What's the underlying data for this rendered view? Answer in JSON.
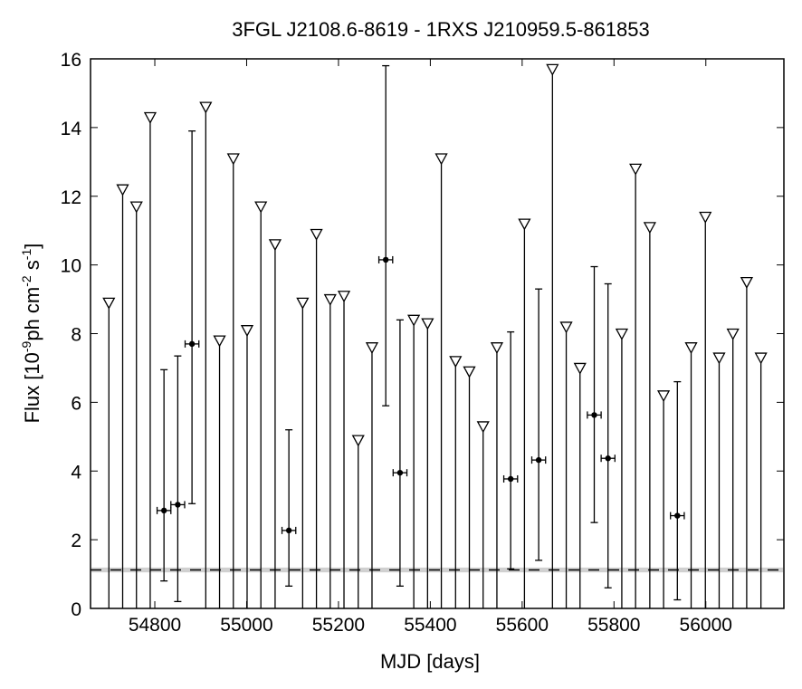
{
  "chart_data": {
    "type": "scatter",
    "title": "3FGL J2108.6-8619 - 1RXS J210959.5-861853",
    "xlabel": "MJD [days]",
    "ylabel": {
      "prefix": "Flux [10",
      "exp1": "-9",
      "mid": "ph cm",
      "exp2": "-2",
      "mid2": " s",
      "exp3": "-1",
      "suffix": "]"
    },
    "xlim": [
      54660,
      56170
    ],
    "ylim": [
      0,
      16
    ],
    "xticks": [
      54800,
      55000,
      55200,
      55400,
      55600,
      55800,
      56000
    ],
    "yticks": [
      0,
      2,
      4,
      6,
      8,
      10,
      12,
      14,
      16
    ],
    "grid": false,
    "upper_limits": [
      {
        "mjd": 54700,
        "flux": 8.9
      },
      {
        "mjd": 54730,
        "flux": 12.2
      },
      {
        "mjd": 54760,
        "flux": 11.7
      },
      {
        "mjd": 54790,
        "flux": 14.3
      },
      {
        "mjd": 54911,
        "flux": 14.6
      },
      {
        "mjd": 54941,
        "flux": 7.8
      },
      {
        "mjd": 54971,
        "flux": 13.1
      },
      {
        "mjd": 55001,
        "flux": 8.1
      },
      {
        "mjd": 55031,
        "flux": 11.7
      },
      {
        "mjd": 55062,
        "flux": 10.6
      },
      {
        "mjd": 55122,
        "flux": 8.9
      },
      {
        "mjd": 55152,
        "flux": 10.9
      },
      {
        "mjd": 55182,
        "flux": 9.0
      },
      {
        "mjd": 55212,
        "flux": 9.1
      },
      {
        "mjd": 55243,
        "flux": 4.9
      },
      {
        "mjd": 55273,
        "flux": 7.6
      },
      {
        "mjd": 55364,
        "flux": 8.4
      },
      {
        "mjd": 55394,
        "flux": 8.3
      },
      {
        "mjd": 55424,
        "flux": 13.1
      },
      {
        "mjd": 55455,
        "flux": 7.2
      },
      {
        "mjd": 55485,
        "flux": 6.9
      },
      {
        "mjd": 55515,
        "flux": 5.3
      },
      {
        "mjd": 55545,
        "flux": 7.6
      },
      {
        "mjd": 55605,
        "flux": 11.2
      },
      {
        "mjd": 55666,
        "flux": 15.7
      },
      {
        "mjd": 55696,
        "flux": 8.2
      },
      {
        "mjd": 55726,
        "flux": 7.0
      },
      {
        "mjd": 55817,
        "flux": 8.0
      },
      {
        "mjd": 55847,
        "flux": 12.8
      },
      {
        "mjd": 55878,
        "flux": 11.1
      },
      {
        "mjd": 55908,
        "flux": 6.2
      },
      {
        "mjd": 55968,
        "flux": 7.6
      },
      {
        "mjd": 55999,
        "flux": 11.4
      },
      {
        "mjd": 56029,
        "flux": 7.3
      },
      {
        "mjd": 56059,
        "flux": 8.0
      },
      {
        "mjd": 56089,
        "flux": 9.5
      },
      {
        "mjd": 56120,
        "flux": 7.3
      }
    ],
    "detections": [
      {
        "mjd": 54820,
        "flux": 2.85,
        "err_lo": 0.8,
        "err_hi": 6.95,
        "x_err": 15
      },
      {
        "mjd": 54850,
        "flux": 3.02,
        "err_lo": 0.2,
        "err_hi": 7.35,
        "x_err": 15
      },
      {
        "mjd": 54881,
        "flux": 7.7,
        "err_lo": 3.05,
        "err_hi": 13.9,
        "x_err": 15
      },
      {
        "mjd": 55092,
        "flux": 2.27,
        "err_lo": 0.65,
        "err_hi": 5.2,
        "x_err": 15
      },
      {
        "mjd": 55303,
        "flux": 10.15,
        "err_lo": 5.9,
        "err_hi": 15.8,
        "x_err": 15
      },
      {
        "mjd": 55334,
        "flux": 3.95,
        "err_lo": 0.65,
        "err_hi": 8.4,
        "x_err": 15
      },
      {
        "mjd": 55575,
        "flux": 3.77,
        "err_lo": 1.15,
        "err_hi": 8.05,
        "x_err": 15
      },
      {
        "mjd": 55636,
        "flux": 4.32,
        "err_lo": 1.4,
        "err_hi": 9.3,
        "x_err": 15
      },
      {
        "mjd": 55757,
        "flux": 5.63,
        "err_lo": 2.5,
        "err_hi": 9.95,
        "x_err": 15
      },
      {
        "mjd": 55787,
        "flux": 4.37,
        "err_lo": 0.6,
        "err_hi": 9.45,
        "x_err": 15
      },
      {
        "mjd": 55938,
        "flux": 2.7,
        "err_lo": 0.25,
        "err_hi": 6.6,
        "x_err": 15
      }
    ],
    "reference_level": {
      "flux": 1.12,
      "band_lo": 1.05,
      "band_hi": 1.19
    }
  }
}
